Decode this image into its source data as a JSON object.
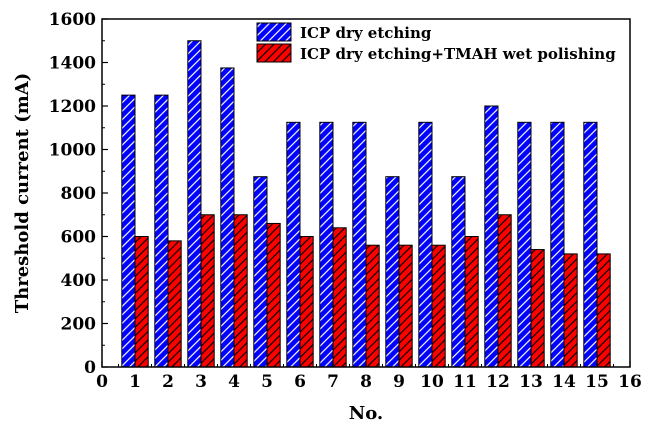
{
  "chart_data": {
    "type": "bar",
    "xlabel": "No.",
    "ylabel": "Threshold current (mA)",
    "xlim": [
      0,
      16
    ],
    "ylim": [
      0,
      1600
    ],
    "x_ticks": [
      0,
      1,
      2,
      3,
      4,
      5,
      6,
      7,
      8,
      9,
      10,
      11,
      12,
      13,
      14,
      15,
      16
    ],
    "y_ticks": [
      0,
      200,
      400,
      600,
      800,
      1000,
      1200,
      1400,
      1600
    ],
    "categories": [
      1,
      2,
      3,
      4,
      5,
      6,
      7,
      8,
      9,
      10,
      11,
      12,
      13,
      14,
      15
    ],
    "legend_position": "top-right",
    "grid": false,
    "series": [
      {
        "name": "ICP dry etching",
        "color": "#0000ff",
        "pattern": "diagonal-hatch",
        "values": [
          1250,
          1250,
          1500,
          1375,
          875,
          1125,
          1125,
          1125,
          875,
          1125,
          875,
          1200,
          1125,
          1125,
          1125
        ]
      },
      {
        "name": "ICP dry etching+TMAH wet polishing",
        "color": "#ff0000",
        "pattern": "diagonal-hatch",
        "values": [
          600,
          580,
          700,
          700,
          660,
          600,
          640,
          560,
          560,
          560,
          600,
          700,
          540,
          520,
          520
        ]
      }
    ]
  }
}
